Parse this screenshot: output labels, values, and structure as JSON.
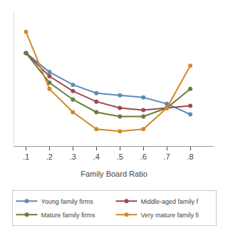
{
  "chart_data": {
    "type": "line",
    "x": [
      0.1,
      0.2,
      0.3,
      0.4,
      0.5,
      0.6,
      0.7,
      0.8
    ],
    "series": [
      {
        "name": "Young family firms",
        "color": "#5b8db8",
        "values": [
          0.72,
          0.63,
          0.57,
          0.53,
          0.52,
          0.51,
          0.48,
          0.43
        ]
      },
      {
        "name": "Middle-aged family f",
        "color": "#9e4b4b",
        "values": [
          0.72,
          0.61,
          0.54,
          0.49,
          0.46,
          0.45,
          0.46,
          0.47
        ]
      },
      {
        "name": "Mature family firms",
        "color": "#6b7d3a",
        "values": [
          0.72,
          0.58,
          0.5,
          0.44,
          0.42,
          0.42,
          0.46,
          0.55
        ]
      },
      {
        "name": "Very mature family fi",
        "color": "#d4882a",
        "values": [
          0.82,
          0.55,
          0.44,
          0.36,
          0.35,
          0.36,
          0.46,
          0.66
        ]
      }
    ],
    "xlabel": "Family Board Ratio",
    "xlim": [
      0.05,
      0.9
    ],
    "xticks": [
      {
        "value": 0.1,
        "label": ".1"
      },
      {
        "value": 0.2,
        "label": ".2"
      },
      {
        "value": 0.3,
        "label": ".3"
      },
      {
        "value": 0.4,
        "label": ".4"
      },
      {
        "value": 0.5,
        "label": ".5"
      },
      {
        "value": 0.6,
        "label": ".6"
      },
      {
        "value": 0.7,
        "label": ".7"
      },
      {
        "value": 0.8,
        "label": ".8"
      }
    ],
    "ylim": [
      0.28,
      0.92
    ],
    "tick_labels": "x",
    "grid": false,
    "legend": "bottom",
    "marker": "circle"
  }
}
